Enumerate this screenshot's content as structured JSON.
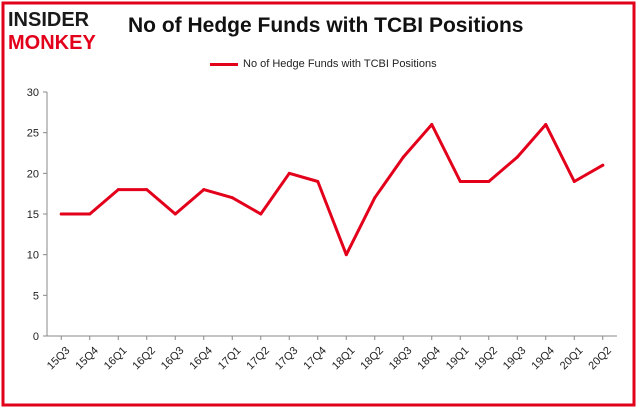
{
  "logo": {
    "line1": "INSIDER",
    "line2": "MONKEY",
    "colors": {
      "insider": "#1a1a1a",
      "monkey": "#e3001b"
    }
  },
  "chart_data": {
    "type": "line",
    "title": "No of Hedge Funds with TCBI Positions",
    "xlabel": "",
    "ylabel": "",
    "categories": [
      "15Q3",
      "15Q4",
      "16Q1",
      "16Q2",
      "16Q3",
      "16Q4",
      "17Q1",
      "17Q2",
      "17Q3",
      "17Q4",
      "18Q1",
      "18Q2",
      "18Q3",
      "18Q4",
      "19Q1",
      "19Q2",
      "19Q3",
      "19Q4",
      "20Q1",
      "20Q2"
    ],
    "series": [
      {
        "name": "No of Hedge Funds with TCBI Positions",
        "color": "#e3001b",
        "values": [
          15,
          15,
          18,
          18,
          15,
          18,
          17,
          15,
          20,
          19,
          10,
          17,
          22,
          26,
          19,
          19,
          22,
          26,
          19,
          21
        ]
      }
    ],
    "ylim": [
      0,
      30
    ],
    "yticks": [
      0,
      5,
      10,
      15,
      20,
      25,
      30
    ],
    "grid": false,
    "legend": "top-center",
    "frame_color": "#e3001b"
  }
}
